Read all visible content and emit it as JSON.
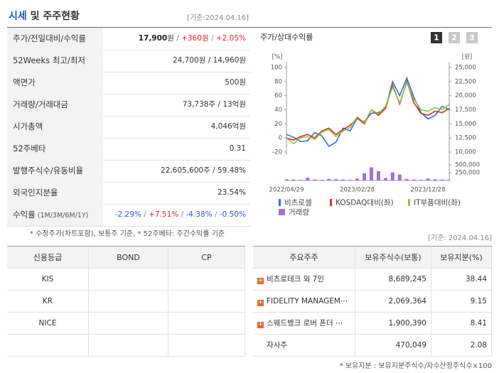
{
  "header": {
    "title_main": "시세",
    "title_rest": " 및 주주현황",
    "date": "[기준:2024.04.16]"
  },
  "price_table": {
    "rows": [
      {
        "label": "주가/전일대비/수익률",
        "parts": [
          "17,900",
          "원",
          " / ",
          "+360원",
          " / ",
          "+2.05%"
        ],
        "colors": [
          "#222",
          "#333",
          "#888",
          "#e0262e",
          "#888",
          "#e0262e"
        ]
      },
      {
        "label": "52Weeks 최고/최저",
        "parts": [
          "24,700원 / 14,960원"
        ]
      },
      {
        "label": "액면가",
        "parts": [
          "500원"
        ]
      },
      {
        "label": "거래량/거래대금",
        "parts": [
          "73,738주 / 13억원"
        ]
      },
      {
        "label": "시가총액",
        "parts": [
          "4,046억원"
        ]
      },
      {
        "label": "52주베타",
        "parts": [
          "0.31"
        ]
      },
      {
        "label": "발행주식수/유동비율",
        "parts": [
          "22,605,600주 / 59.48%"
        ]
      },
      {
        "label": "외국인지분율",
        "parts": [
          "23.54%"
        ]
      },
      {
        "label": "수익률",
        "label_note": " (1M/3M/6M/1Y)",
        "parts": [
          "-2.29%",
          " / ",
          "+7.51%",
          " / ",
          "-4.38%",
          " / ",
          "-0.50%"
        ],
        "colors": [
          "#2c5ecf",
          "#888",
          "#e0262e",
          "#888",
          "#2c5ecf",
          "#888",
          "#2c5ecf"
        ]
      }
    ],
    "note": "* 수정주가(차트포함), 보통주 기준, * 52주베타: 주간수익률 기준"
  },
  "chart_panel": {
    "title": "주가/상대수익률",
    "buttons": [
      "1",
      "2",
      "3"
    ]
  },
  "chart_data": {
    "type": "line",
    "y_unit": "[%]",
    "y2_unit": "[원]",
    "categories": [
      "2022/04/29",
      null,
      null,
      null,
      null,
      null,
      null,
      null,
      null,
      null,
      "2023/02/28",
      null,
      null,
      null,
      null,
      null,
      null,
      null,
      null,
      null,
      "2023/12/28",
      null,
      null,
      null
    ],
    "ylim": [
      -20,
      100
    ],
    "yticks": [
      -20,
      0,
      20,
      40,
      60,
      80,
      100
    ],
    "y2lim": [
      10000,
      25000
    ],
    "y2ticks": [
      {
        "value": 10000,
        "label": "10,000"
      },
      {
        "value": 12500,
        "label": "12,500"
      },
      {
        "value": 15000,
        "label": "15,000"
      },
      {
        "value": 17500,
        "label": "17,500"
      },
      {
        "value": 20000,
        "label": "20,000"
      },
      {
        "value": 22500,
        "label": "22,500"
      },
      {
        "value": 25000,
        "label": "25,000"
      }
    ],
    "volume_lim": [
      0,
      500000
    ],
    "volume_ticks": [
      {
        "value": 250000,
        "label": "250,000"
      },
      {
        "value": 500000,
        "label": "500,000"
      }
    ],
    "series": [
      {
        "name": "비츠로셀",
        "color": "#2f6fe0",
        "values": [
          5,
          1,
          -5,
          -4,
          8,
          3,
          -12,
          -6,
          14,
          10,
          28,
          23,
          35,
          36,
          42,
          80,
          60,
          85,
          58,
          36,
          27,
          32,
          45,
          40
        ]
      },
      {
        "name": "KOSDAQ대비(좌)",
        "color": "#d9301f",
        "values": [
          0,
          -3,
          2,
          5,
          0,
          10,
          14,
          5,
          12,
          18,
          28,
          20,
          40,
          32,
          42,
          75,
          48,
          80,
          50,
          35,
          32,
          38,
          36,
          42
        ]
      },
      {
        "name": "IT부품대비(좌)",
        "color": "#8cc63e",
        "values": [
          0,
          -8,
          0,
          2,
          -2,
          8,
          12,
          2,
          10,
          15,
          30,
          22,
          40,
          34,
          45,
          72,
          50,
          78,
          55,
          40,
          38,
          43,
          40,
          48
        ]
      }
    ],
    "volume": {
      "name": "거래량",
      "color": "#a86fd6",
      "values": [
        40000,
        30000,
        20000,
        90000,
        30000,
        20000,
        50000,
        40000,
        30000,
        20000,
        60000,
        230000,
        420000,
        300000,
        80000,
        260000,
        190000,
        50000,
        30000,
        20000,
        60000,
        40000,
        30000,
        20000
      ]
    }
  },
  "date2": "[기준: 2024.04.16]",
  "credit_table": {
    "header": [
      "신용등급",
      "BOND",
      "CP"
    ],
    "rows": [
      [
        "KIS",
        "",
        ""
      ],
      [
        "KR",
        "",
        ""
      ],
      [
        "NICE",
        "",
        ""
      ]
    ]
  },
  "holder_table": {
    "header": [
      "주요주주",
      "보유주식수(보통)",
      "보유지분(%)"
    ],
    "rows": [
      [
        "비츠로테크 외 7인",
        "8,689,245",
        "38.44"
      ],
      [
        "FIDELITY MANAGEM⋯",
        "2,069,364",
        "9.15"
      ],
      [
        "스웨드뱅크 로버 폰더 ⋯",
        "1,900,390",
        "8.41"
      ],
      [
        "자사주",
        "470,049",
        "2.08"
      ]
    ],
    "note": "* 보유지분 : 보유지분주식수/자수산정주식수×100"
  }
}
